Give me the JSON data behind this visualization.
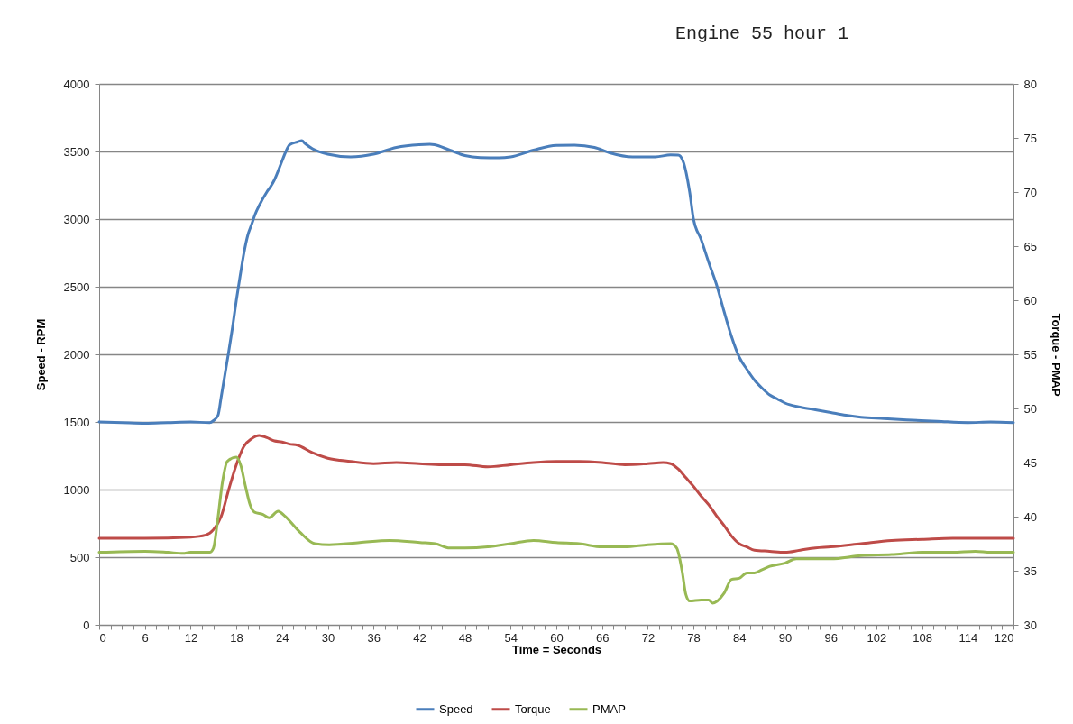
{
  "chart_data": {
    "type": "line",
    "title": "Engine 55 hour 1",
    "xlabel": "Time = Seconds",
    "ylabel": "Speed - RPM",
    "y2label": "Torque - PMAP",
    "xlim": [
      0,
      120
    ],
    "xticks": [
      0,
      {
        "value": 1.5,
        "label": null
      },
      {
        "value": 3,
        "label": null
      },
      {
        "value": 4.5,
        "label": null
      },
      6,
      {
        "value": 7.5,
        "label": null
      },
      {
        "value": 9,
        "label": null
      },
      {
        "value": 10.5,
        "label": null
      },
      12,
      {
        "value": 13.5,
        "label": null
      },
      {
        "value": 15,
        "label": null
      },
      {
        "value": 16.5,
        "label": null
      },
      18,
      {
        "value": 19.5,
        "label": null
      },
      {
        "value": 21,
        "label": null
      },
      {
        "value": 22.5,
        "label": null
      },
      24,
      {
        "value": 25.5,
        "label": null
      },
      {
        "value": 27,
        "label": null
      },
      {
        "value": 28.5,
        "label": null
      },
      30,
      {
        "value": 31.5,
        "label": null
      },
      {
        "value": 33,
        "label": null
      },
      {
        "value": 34.5,
        "label": null
      },
      36,
      {
        "value": 37.5,
        "label": null
      },
      {
        "value": 39,
        "label": null
      },
      {
        "value": 40.5,
        "label": null
      },
      42,
      {
        "value": 43.5,
        "label": null
      },
      {
        "value": 45,
        "label": null
      },
      {
        "value": 46.5,
        "label": null
      },
      48,
      {
        "value": 49.5,
        "label": null
      },
      {
        "value": 51,
        "label": null
      },
      {
        "value": 52.5,
        "label": null
      },
      54,
      {
        "value": 55.5,
        "label": null
      },
      {
        "value": 57,
        "label": null
      },
      {
        "value": 58.5,
        "label": null
      },
      60,
      {
        "value": 61.5,
        "label": null
      },
      {
        "value": 63,
        "label": null
      },
      {
        "value": 64.5,
        "label": null
      },
      66,
      {
        "value": 67.5,
        "label": null
      },
      {
        "value": 69,
        "label": null
      },
      {
        "value": 70.5,
        "label": null
      },
      72,
      {
        "value": 73.5,
        "label": null
      },
      {
        "value": 75,
        "label": null
      },
      {
        "value": 76.5,
        "label": null
      },
      78,
      {
        "value": 79.5,
        "label": null
      },
      {
        "value": 81,
        "label": null
      },
      {
        "value": 82.5,
        "label": null
      },
      84,
      {
        "value": 85.5,
        "label": null
      },
      {
        "value": 87,
        "label": null
      },
      {
        "value": 88.5,
        "label": null
      },
      90,
      {
        "value": 91.5,
        "label": null
      },
      {
        "value": 93,
        "label": null
      },
      {
        "value": 94.5,
        "label": null
      },
      96,
      {
        "value": 97.5,
        "label": null
      },
      {
        "value": 99,
        "label": null
      },
      {
        "value": 100.5,
        "label": null
      },
      102,
      {
        "value": 103.5,
        "label": null
      },
      {
        "value": 105,
        "label": null
      },
      {
        "value": 106.5,
        "label": null
      },
      108,
      {
        "value": 109.5,
        "label": null
      },
      {
        "value": 111,
        "label": null
      },
      {
        "value": 112.5,
        "label": null
      },
      114,
      {
        "value": 115.5,
        "label": null
      },
      {
        "value": 117,
        "label": null
      },
      {
        "value": 118.5,
        "label": null
      },
      120
    ],
    "ylim": [
      0,
      4000
    ],
    "yticks": [
      0,
      500,
      1000,
      1500,
      2000,
      2500,
      3000,
      3500,
      4000
    ],
    "y2lim": [
      30,
      80
    ],
    "y2ticks": [
      30,
      35,
      40,
      45,
      50,
      55,
      60,
      65,
      70,
      75,
      80
    ],
    "grid": "y",
    "legend": "bottom",
    "line_style": "solid",
    "series": [
      {
        "name": "Speed",
        "color": "#4a7ebb",
        "x": [
          0,
          3,
          6,
          9,
          12,
          14.5,
          15,
          15.6,
          16,
          16.5,
          17,
          17.5,
          18,
          18.5,
          19,
          19.5,
          20,
          20.5,
          21,
          22,
          22.5,
          23,
          24,
          24.5,
          25,
          26,
          26.6,
          27,
          28,
          30,
          33,
          36,
          39,
          42,
          43.4,
          44,
          46,
          48,
          50,
          52.5,
          54,
          57,
          60,
          62.4,
          65,
          67,
          70,
          73,
          75,
          76,
          76.6,
          77.5,
          78,
          79,
          80,
          81,
          82,
          83,
          84,
          85,
          86,
          87,
          88,
          89,
          90,
          92,
          94,
          96,
          98,
          100,
          103,
          106,
          110,
          114,
          117,
          120
        ],
        "values": [
          1500,
          1495,
          1490,
          1495,
          1500,
          1495,
          1510,
          1550,
          1680,
          1850,
          2020,
          2200,
          2400,
          2580,
          2750,
          2880,
          2960,
          3040,
          3100,
          3200,
          3240,
          3290,
          3430,
          3500,
          3550,
          3570,
          3580,
          3560,
          3520,
          3480,
          3460,
          3480,
          3530,
          3550,
          3553,
          3550,
          3510,
          3470,
          3455,
          3453,
          3460,
          3510,
          3545,
          3547,
          3530,
          3490,
          3460,
          3460,
          3475,
          3473,
          3433,
          3200,
          3000,
          2850,
          2680,
          2520,
          2320,
          2130,
          1980,
          1890,
          1810,
          1750,
          1700,
          1670,
          1640,
          1610,
          1590,
          1570,
          1550,
          1535,
          1525,
          1515,
          1505,
          1495,
          1500,
          1495
        ]
      },
      {
        "name": "Torque",
        "color": "#be4b48",
        "axis": "y2",
        "x": [
          0,
          6,
          12,
          14,
          15,
          16,
          17,
          18,
          19,
          20,
          21,
          22,
          23,
          24,
          25,
          26,
          28,
          30,
          33,
          36,
          39,
          42,
          45,
          48,
          51,
          54,
          57,
          60,
          63,
          66,
          69,
          72,
          74,
          75,
          76,
          77,
          78,
          79,
          80,
          81,
          82,
          83,
          84,
          85,
          86,
          88,
          90,
          92,
          94,
          96,
          100,
          104,
          108,
          112,
          116,
          120
        ],
        "values": [
          38.0,
          38.0,
          38.1,
          38.3,
          38.8,
          40.0,
          42.5,
          44.8,
          46.5,
          47.2,
          47.5,
          47.3,
          47.0,
          46.9,
          46.7,
          46.6,
          45.9,
          45.4,
          45.1,
          44.9,
          45.0,
          44.9,
          44.8,
          44.8,
          44.6,
          44.8,
          45.0,
          45.1,
          45.1,
          45.0,
          44.8,
          44.9,
          45.0,
          44.9,
          44.4,
          43.6,
          42.8,
          41.9,
          41.1,
          40.1,
          39.2,
          38.2,
          37.5,
          37.2,
          36.9,
          36.8,
          36.7,
          36.9,
          37.1,
          37.2,
          37.5,
          37.8,
          37.9,
          38.0,
          38.0,
          38.0
        ]
      },
      {
        "name": "PMAP",
        "color": "#98b954",
        "axis": "y2",
        "x": [
          0,
          6,
          9,
          11,
          12,
          14.5,
          15,
          15.5,
          16.2,
          16.8,
          18,
          18.6,
          19.2,
          19.8,
          20.4,
          21.5,
          22.3,
          23.5,
          24.3,
          26.3,
          28.3,
          30.2,
          34.2,
          38.1,
          42.1,
          44.1,
          46,
          48,
          51,
          54,
          57,
          60,
          63,
          66,
          69,
          72,
          75,
          75.8,
          76.5,
          77,
          77.5,
          79,
          80,
          80.5,
          82,
          83,
          84,
          85,
          86,
          87,
          88,
          90,
          91.5,
          93,
          96,
          100,
          104,
          108,
          112,
          115,
          117,
          120
        ],
        "values": [
          36.7,
          36.8,
          36.7,
          36.6,
          36.7,
          36.7,
          37.1,
          39.4,
          43.3,
          45.1,
          45.5,
          44.7,
          42.8,
          41.1,
          40.4,
          40.2,
          39.9,
          40.5,
          40.1,
          38.6,
          37.5,
          37.4,
          37.6,
          37.8,
          37.6,
          37.5,
          37.1,
          37.1,
          37.2,
          37.5,
          37.8,
          37.6,
          37.5,
          37.2,
          37.2,
          37.4,
          37.5,
          37.1,
          35.0,
          32.8,
          32.2,
          32.3,
          32.3,
          32.0,
          32.9,
          34.2,
          34.3,
          34.8,
          34.8,
          35.1,
          35.4,
          35.7,
          36.1,
          36.1,
          36.1,
          36.4,
          36.5,
          36.7,
          36.7,
          36.8,
          36.7,
          36.7
        ]
      }
    ]
  }
}
